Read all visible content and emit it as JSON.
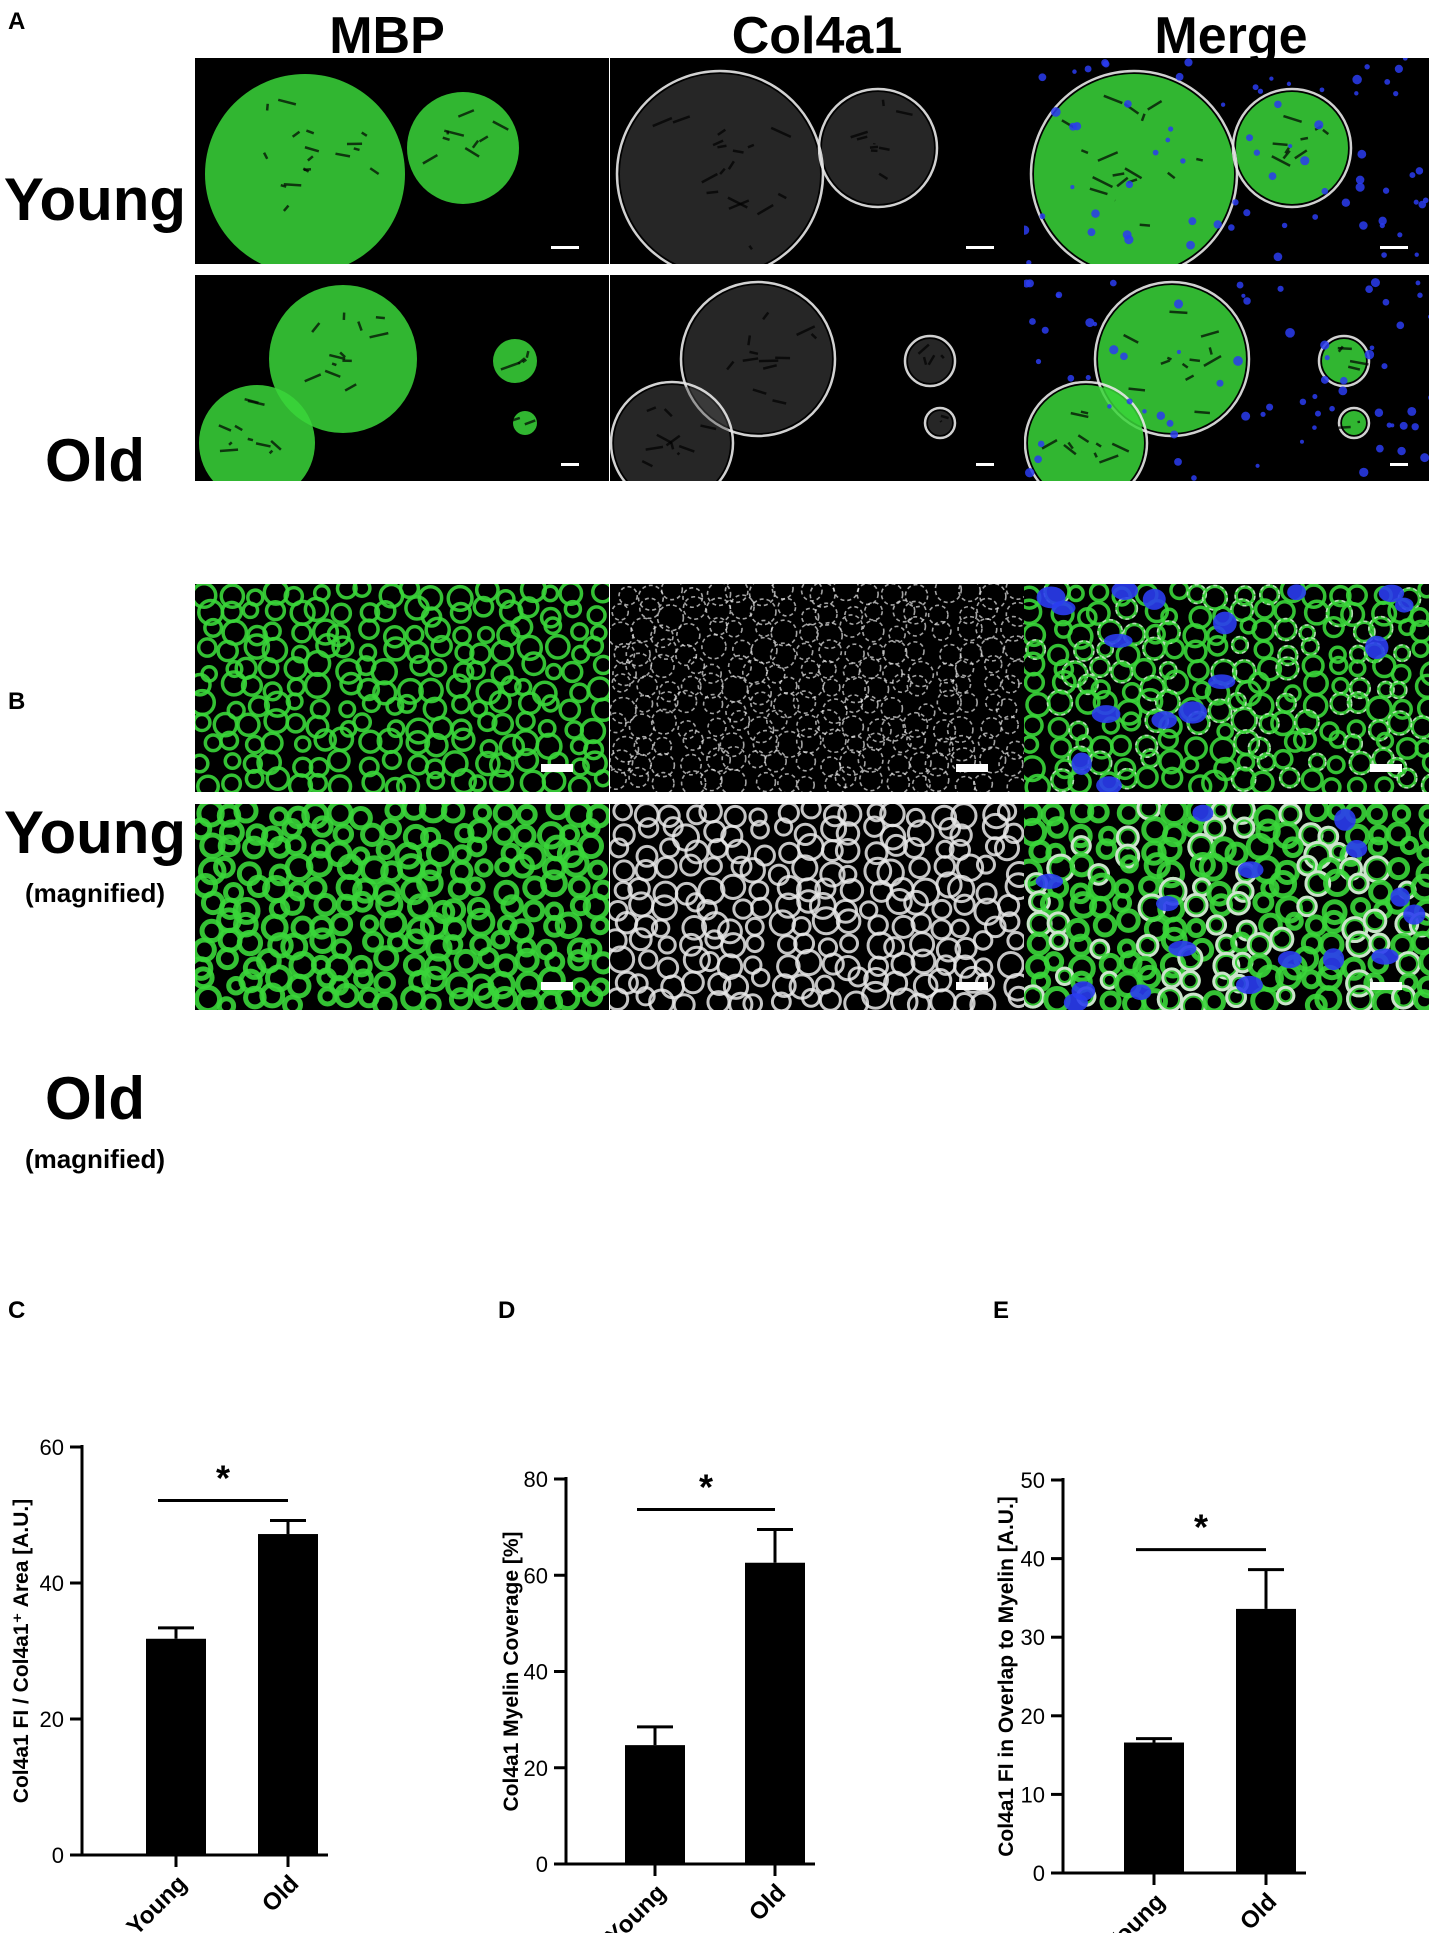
{
  "panel_a": {
    "letter": "A",
    "columns": [
      "MBP",
      "Col4a1",
      "Merge"
    ],
    "rows": [
      {
        "label": "Young",
        "sub": ""
      },
      {
        "label": "Old",
        "sub": ""
      }
    ]
  },
  "panel_b": {
    "letter": "B",
    "rows": [
      {
        "label": "Young",
        "sub": "(magnified)"
      },
      {
        "label": "Old",
        "sub": "(magnified)"
      }
    ]
  },
  "colors": {
    "mbp": "#3ad63a",
    "col4a1": "#e8e8e8",
    "nuclei": "#2a3cf0",
    "bar": "#000000"
  },
  "chart_data": [
    {
      "letter": "C",
      "type": "bar",
      "categories": [
        "Young",
        "Old"
      ],
      "values": [
        31.8,
        47.2
      ],
      "errors": [
        1.6,
        2.0
      ],
      "ylabel": "Col4a1 FI / Col4a1⁺ Area [A.U.]",
      "ylim": [
        0,
        60
      ],
      "yticks": [
        0,
        20,
        40,
        60
      ],
      "significance": "*"
    },
    {
      "letter": "D",
      "type": "bar",
      "categories": [
        "Young",
        "Old"
      ],
      "values": [
        24.7,
        62.6
      ],
      "errors": [
        3.8,
        6.9
      ],
      "ylabel": "Col4a1 Myelin Coverage [%]",
      "ylim": [
        0,
        80
      ],
      "yticks": [
        0,
        20,
        40,
        60,
        80
      ],
      "significance": "*"
    },
    {
      "letter": "E",
      "type": "bar",
      "categories": [
        "Young",
        "Old"
      ],
      "values": [
        16.6,
        33.6
      ],
      "errors": [
        0.5,
        5.0
      ],
      "ylabel": "Col4a1 FI in Overlap to Myelin [A.U.]",
      "ylim": [
        0,
        50
      ],
      "yticks": [
        0,
        10,
        20,
        30,
        40,
        50
      ],
      "significance": "*"
    }
  ]
}
